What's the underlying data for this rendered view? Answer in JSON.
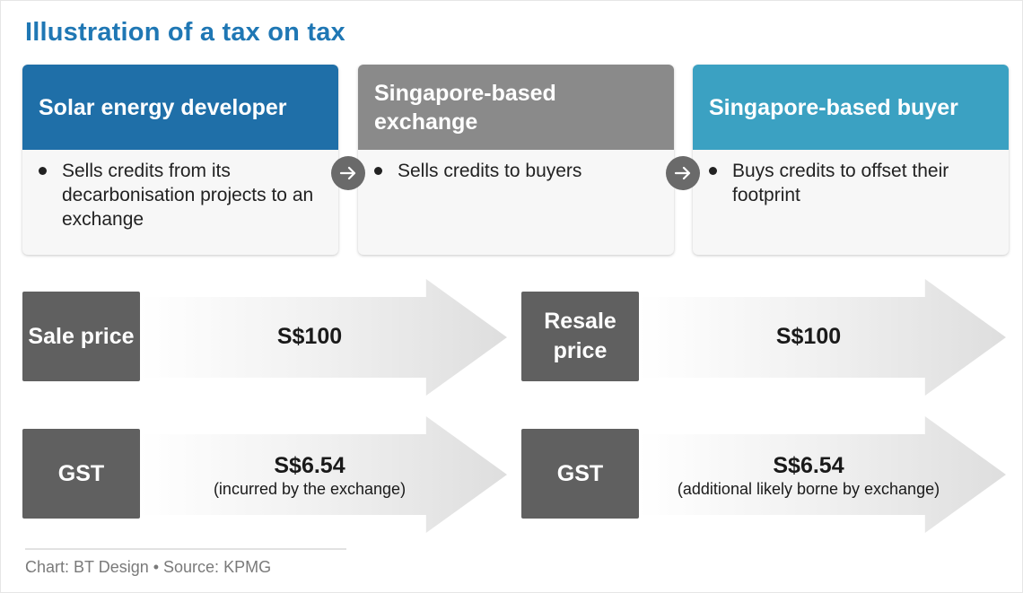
{
  "title": "Illustration of a tax on tax",
  "colors": {
    "title": "#1f77b4",
    "developer_header": "#1f6fa8",
    "exchange_header": "#8a8a8a",
    "buyer_header": "#3ba1c2",
    "label_box": "#606060",
    "arrow_icon_bg": "#6a6a6a"
  },
  "cards": [
    {
      "heading": "Solar energy developer",
      "bullet": "Sells credits from its decarbonisation projects to an exchange"
    },
    {
      "heading": "Singapore-based exchange",
      "bullet": "Sells credits to buyers"
    },
    {
      "heading": "Singapore-based buyer",
      "bullet": "Buys credits to offset their footprint"
    }
  ],
  "flow_icon": "right-arrow-icon",
  "rows": [
    {
      "left": {
        "label": "Sale price",
        "amount": "S$100",
        "note": ""
      },
      "right": {
        "label": "Resale price",
        "amount": "S$100",
        "note": ""
      }
    },
    {
      "left": {
        "label": "GST",
        "amount": "S$6.54",
        "note": "(incurred by the exchange)"
      },
      "right": {
        "label": "GST",
        "amount": "S$6.54",
        "note": "(additional likely borne by exchange)"
      }
    }
  ],
  "footer": "Chart: BT Design • Source: KPMG"
}
